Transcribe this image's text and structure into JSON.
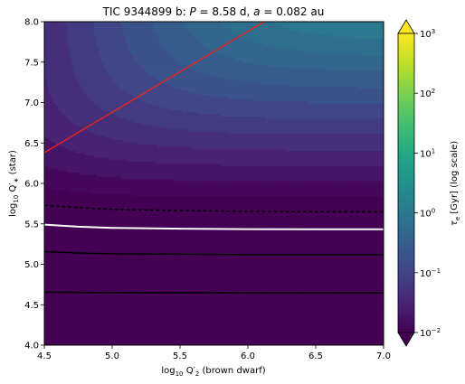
{
  "chart_data": {
    "type": "heatmap",
    "title": {
      "prefix": "TIC 9344899 b: ",
      "p_sym": "P",
      "p_val": " = 8.58 d, ",
      "a_sym": "a",
      "a_val": " = 0.082 au"
    },
    "xlabel": {
      "pre": "log",
      "sub": "10",
      "mid": " Q′",
      "sub2": "2",
      "post": " (brown dwarf)"
    },
    "ylabel": {
      "pre": "log",
      "sub": "10",
      "mid": " Q′",
      "sub2": "∗",
      "post": "  (star)"
    },
    "xlim": [
      4.5,
      7.0
    ],
    "ylim": [
      4.0,
      8.0
    ],
    "x_ticks": [
      "4.5",
      "5.0",
      "5.5",
      "6.0",
      "6.5",
      "7.0"
    ],
    "y_ticks": [
      "4.0",
      "4.5",
      "5.0",
      "5.5",
      "6.0",
      "6.5",
      "7.0",
      "7.5",
      "8.0"
    ],
    "colorbar": {
      "label_sym": "τ",
      "label_sub": "e",
      "label_rest": " [Gyr] (log scale)",
      "scale": "log",
      "range": [
        0.01,
        1000
      ],
      "ticks": [
        {
          "base": "10",
          "exp": "3",
          "value": 1000
        },
        {
          "base": "10",
          "exp": "2",
          "value": 100
        },
        {
          "base": "10",
          "exp": "1",
          "value": 10
        },
        {
          "base": "10",
          "exp": "0",
          "value": 1
        },
        {
          "base": "10",
          "exp": "−1",
          "value": 0.1
        },
        {
          "base": "10",
          "exp": "−2",
          "value": 0.01
        }
      ],
      "extend": "both",
      "colormap": "viridis"
    },
    "lines": [
      {
        "name": "red-line",
        "color": "#e8231e",
        "style": "solid",
        "x": [
          4.5,
          6.12
        ],
        "y": [
          6.38,
          8.0
        ]
      },
      {
        "name": "dashed-contour",
        "color": "#000000",
        "style": "dashed",
        "x": [
          4.5,
          4.75,
          5.0,
          5.5,
          6.0,
          6.5,
          7.0
        ],
        "y": [
          5.73,
          5.7,
          5.68,
          5.665,
          5.655,
          5.65,
          5.65
        ]
      },
      {
        "name": "white-contour",
        "color": "#ffffff",
        "style": "solid",
        "x": [
          4.5,
          4.75,
          5.0,
          5.5,
          6.0,
          6.5,
          7.0
        ],
        "y": [
          5.49,
          5.465,
          5.45,
          5.44,
          5.435,
          5.433,
          5.432
        ]
      },
      {
        "name": "black-contour-upper",
        "color": "#000000",
        "style": "solid",
        "x": [
          4.5,
          4.75,
          5.0,
          5.5,
          6.0,
          6.5,
          7.0
        ],
        "y": [
          5.155,
          5.14,
          5.13,
          5.125,
          5.12,
          5.12,
          5.12
        ]
      },
      {
        "name": "black-contour-lower",
        "color": "#000000",
        "style": "solid",
        "x": [
          4.5,
          5.0,
          5.5,
          6.0,
          6.5,
          7.0
        ],
        "y": [
          4.655,
          4.65,
          4.648,
          4.645,
          4.645,
          4.645
        ]
      }
    ]
  }
}
